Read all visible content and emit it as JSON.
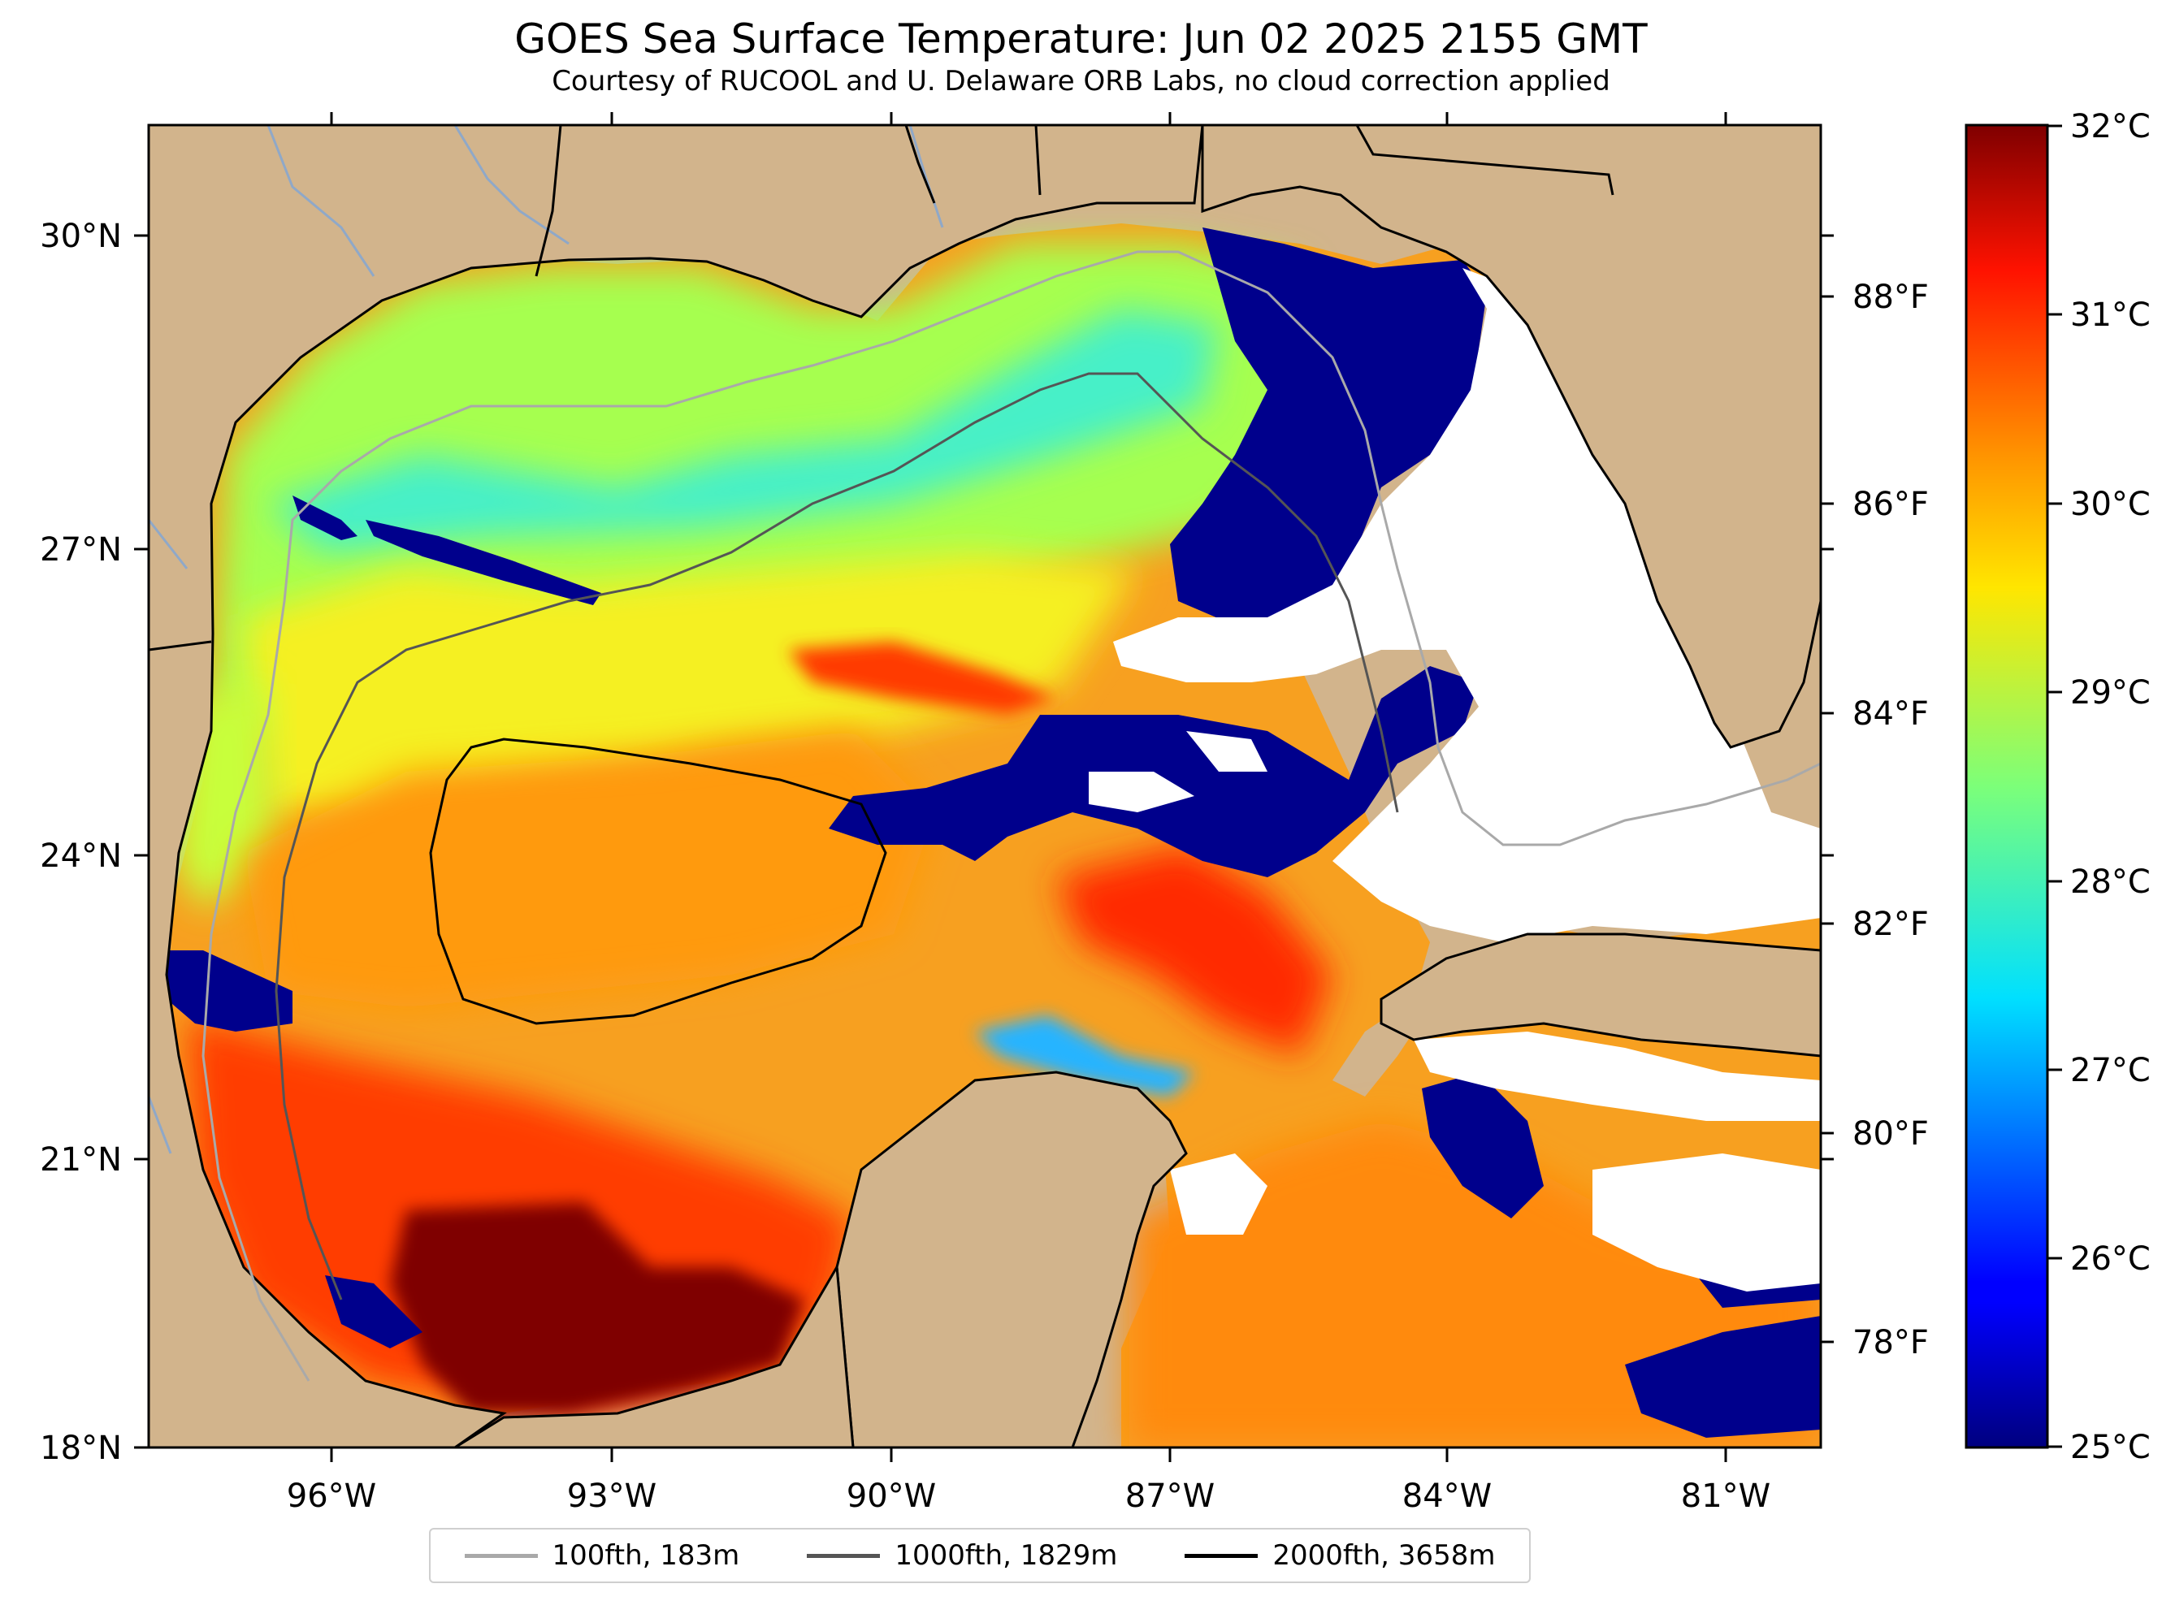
{
  "title": "GOES Sea Surface Temperature: Jun 02 2025 2155 GMT",
  "subtitle": "Courtesy of RUCOOL and U. Delaware ORB Labs, no cloud correction applied",
  "colors": {
    "land": "#d2b48c",
    "no_data": "#ffffff",
    "state_lines": "#000000",
    "rivers": "#8fa8c8"
  },
  "map": {
    "lon_range": [
      -98,
      -80
    ],
    "lat_range": [
      18,
      31
    ],
    "lat_labels": [
      "30°N",
      "27°N",
      "24°N",
      "21°N",
      "18°N"
    ],
    "lon_labels": [
      "96°W",
      "93°W",
      "90°W",
      "87°W",
      "84°W",
      "81°W"
    ],
    "fahrenheit_labels": [
      "88°F",
      "86°F",
      "84°F",
      "82°F",
      "80°F",
      "78°F"
    ]
  },
  "colorbar": {
    "min_c": 25,
    "max_c": 32,
    "labels": [
      "32°C",
      "31°C",
      "30°C",
      "29°C",
      "28°C",
      "27°C",
      "26°C",
      "25°C"
    ],
    "colormap": "jet"
  },
  "legend": {
    "items": [
      {
        "label": "100fth, 183m",
        "color": "#a9a9a9"
      },
      {
        "label": "1000fth, 1829m",
        "color": "#555555"
      },
      {
        "label": "2000fth, 3658m",
        "color": "#000000"
      }
    ]
  }
}
